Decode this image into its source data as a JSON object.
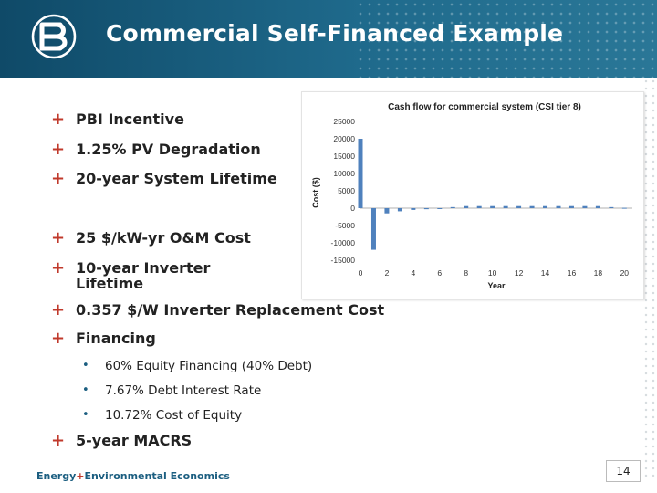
{
  "slide": {
    "title": "Commercial Self-Financed Example",
    "page_number": "14",
    "footer_org_prefix": "Energy",
    "footer_org_plus": "+",
    "footer_org_suffix": "Environmental Economics"
  },
  "bullets": [
    {
      "label": "PBI Incentive"
    },
    {
      "label": "1.25% PV Degradation"
    },
    {
      "label": "20-year System Lifetime"
    },
    {
      "label": "25 $/kW-yr O&M Cost"
    },
    {
      "label_line1": "10-year Inverter",
      "label_line2": "Lifetime"
    },
    {
      "label": "0.357 $/W Inverter Replacement Cost"
    },
    {
      "label": "Financing"
    },
    {
      "label": "5-year MACRS"
    }
  ],
  "sub_bullets": [
    {
      "label": "60% Equity Financing (40% Debt)"
    },
    {
      "label": "7.67% Debt Interest Rate"
    },
    {
      "label": "10.72% Cost of Equity"
    }
  ],
  "colors": {
    "header": "#1b5e80",
    "bullet_marker": "#c0392b",
    "bar": "#4f81bd"
  },
  "chart_data": {
    "type": "bar",
    "title": "Cash flow for commercial system (CSI tier 8)",
    "xlabel": "Year",
    "ylabel": "Cost ($)",
    "ylim": [
      -15000,
      25000
    ],
    "yticks": [
      -15000,
      -10000,
      -5000,
      0,
      5000,
      10000,
      15000,
      20000,
      25000
    ],
    "xticks": [
      0,
      2,
      4,
      6,
      8,
      10,
      12,
      14,
      16,
      18,
      20
    ],
    "x": [
      0,
      1,
      2,
      3,
      4,
      5,
      6,
      7,
      8,
      9,
      10,
      11,
      12,
      13,
      14,
      15,
      16,
      17,
      18,
      19,
      20
    ],
    "values": [
      20000,
      -12000,
      -1500,
      -900,
      -500,
      -300,
      -100,
      300,
      600,
      600,
      600,
      600,
      600,
      600,
      600,
      600,
      600,
      600,
      600,
      300,
      100
    ],
    "grid": false,
    "legend": "none"
  }
}
